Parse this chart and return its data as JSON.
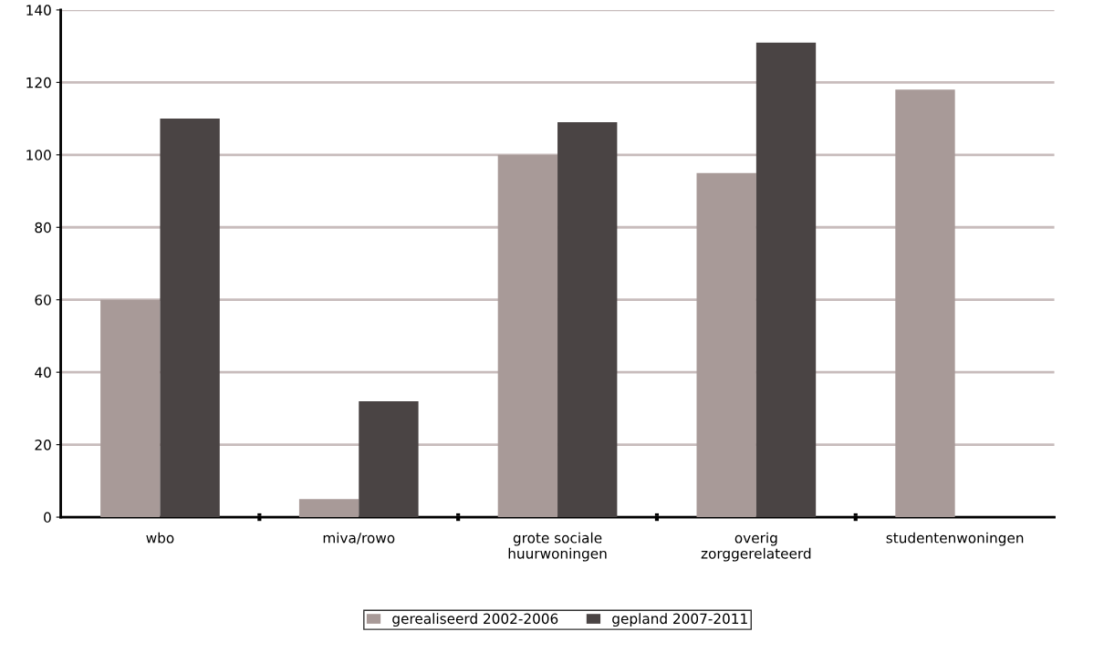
{
  "chart_data": {
    "type": "bar",
    "categories": [
      "wbo",
      "miva/rowo",
      "grote sociale\nhuurwoningen",
      "overig\nzorggerelateerd",
      "studentenwoningen"
    ],
    "series": [
      {
        "name": "gerealiseerd 2002-2006",
        "color": "#a89a98",
        "values": [
          60,
          5,
          100,
          95,
          118
        ]
      },
      {
        "name": "gepland 2007-2011",
        "color": "#4a4444",
        "values": [
          110,
          32,
          109,
          131,
          null
        ]
      }
    ],
    "ylim": [
      0,
      140
    ],
    "yticks": [
      0,
      20,
      40,
      60,
      80,
      100,
      120,
      140
    ],
    "grid": "y",
    "legend": "bottom"
  }
}
